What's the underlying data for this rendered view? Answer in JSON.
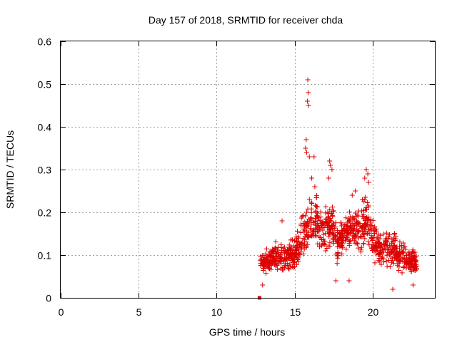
{
  "chart_data": {
    "type": "scatter",
    "title": "Day 157 of 2018, SRMTID for receiver chda",
    "xlabel": "GPS time / hours",
    "ylabel": "SRMTID / TECUs",
    "xlim": [
      0,
      24
    ],
    "ylim": [
      0,
      0.6
    ],
    "xticks": [
      "0",
      "5",
      "10",
      "15",
      "20"
    ],
    "xtick_values": [
      0,
      5,
      10,
      15,
      20
    ],
    "yticks": [
      "0",
      "0.1",
      "0.2",
      "0.3",
      "0.4",
      "0.5",
      "0.6"
    ],
    "ytick_values": [
      0,
      0.1,
      0.2,
      0.3,
      0.4,
      0.5,
      0.6
    ],
    "grid": true,
    "marker": "+",
    "color": "#dd0000",
    "series": [
      {
        "name": "SRMTID",
        "outlier_points": [
          [
            12.75,
            0.0
          ],
          [
            15.85,
            0.51
          ],
          [
            15.88,
            0.48
          ],
          [
            15.82,
            0.46
          ],
          [
            15.9,
            0.45
          ],
          [
            15.75,
            0.37
          ],
          [
            15.7,
            0.35
          ],
          [
            15.78,
            0.34
          ],
          [
            15.95,
            0.33
          ],
          [
            16.25,
            0.33
          ],
          [
            16.1,
            0.28
          ],
          [
            16.3,
            0.26
          ],
          [
            17.25,
            0.32
          ],
          [
            17.3,
            0.31
          ],
          [
            17.4,
            0.3
          ],
          [
            17.2,
            0.28
          ],
          [
            19.6,
            0.3
          ],
          [
            19.7,
            0.29
          ],
          [
            19.5,
            0.28
          ],
          [
            19.75,
            0.27
          ],
          [
            18.9,
            0.25
          ],
          [
            18.7,
            0.24
          ],
          [
            14.2,
            0.18
          ],
          [
            12.95,
            0.03
          ],
          [
            17.65,
            0.04
          ],
          [
            18.5,
            0.04
          ],
          [
            21.3,
            0.02
          ],
          [
            22.6,
            0.03
          ]
        ],
        "envelope": [
          [
            12.8,
            0.055,
            0.105
          ],
          [
            13.0,
            0.055,
            0.11
          ],
          [
            13.3,
            0.05,
            0.13
          ],
          [
            13.6,
            0.055,
            0.145
          ],
          [
            13.9,
            0.05,
            0.14
          ],
          [
            14.2,
            0.05,
            0.14
          ],
          [
            14.5,
            0.05,
            0.135
          ],
          [
            14.8,
            0.055,
            0.145
          ],
          [
            15.1,
            0.06,
            0.17
          ],
          [
            15.4,
            0.06,
            0.21
          ],
          [
            15.7,
            0.08,
            0.24
          ],
          [
            16.0,
            0.1,
            0.25
          ],
          [
            16.3,
            0.11,
            0.26
          ],
          [
            16.6,
            0.1,
            0.24
          ],
          [
            16.9,
            0.09,
            0.22
          ],
          [
            17.2,
            0.09,
            0.26
          ],
          [
            17.5,
            0.08,
            0.23
          ],
          [
            17.8,
            0.07,
            0.18
          ],
          [
            18.1,
            0.08,
            0.2
          ],
          [
            18.4,
            0.09,
            0.22
          ],
          [
            18.7,
            0.09,
            0.23
          ],
          [
            19.0,
            0.08,
            0.22
          ],
          [
            19.3,
            0.09,
            0.24
          ],
          [
            19.6,
            0.09,
            0.26
          ],
          [
            19.9,
            0.08,
            0.22
          ],
          [
            20.2,
            0.07,
            0.18
          ],
          [
            20.5,
            0.06,
            0.16
          ],
          [
            20.8,
            0.05,
            0.17
          ],
          [
            21.1,
            0.05,
            0.19
          ],
          [
            21.4,
            0.05,
            0.17
          ],
          [
            21.7,
            0.05,
            0.15
          ],
          [
            22.0,
            0.04,
            0.14
          ],
          [
            22.3,
            0.05,
            0.13
          ],
          [
            22.6,
            0.05,
            0.12
          ],
          [
            22.85,
            0.05,
            0.11
          ]
        ],
        "density_per_hour": 100,
        "seed": 157
      }
    ]
  }
}
